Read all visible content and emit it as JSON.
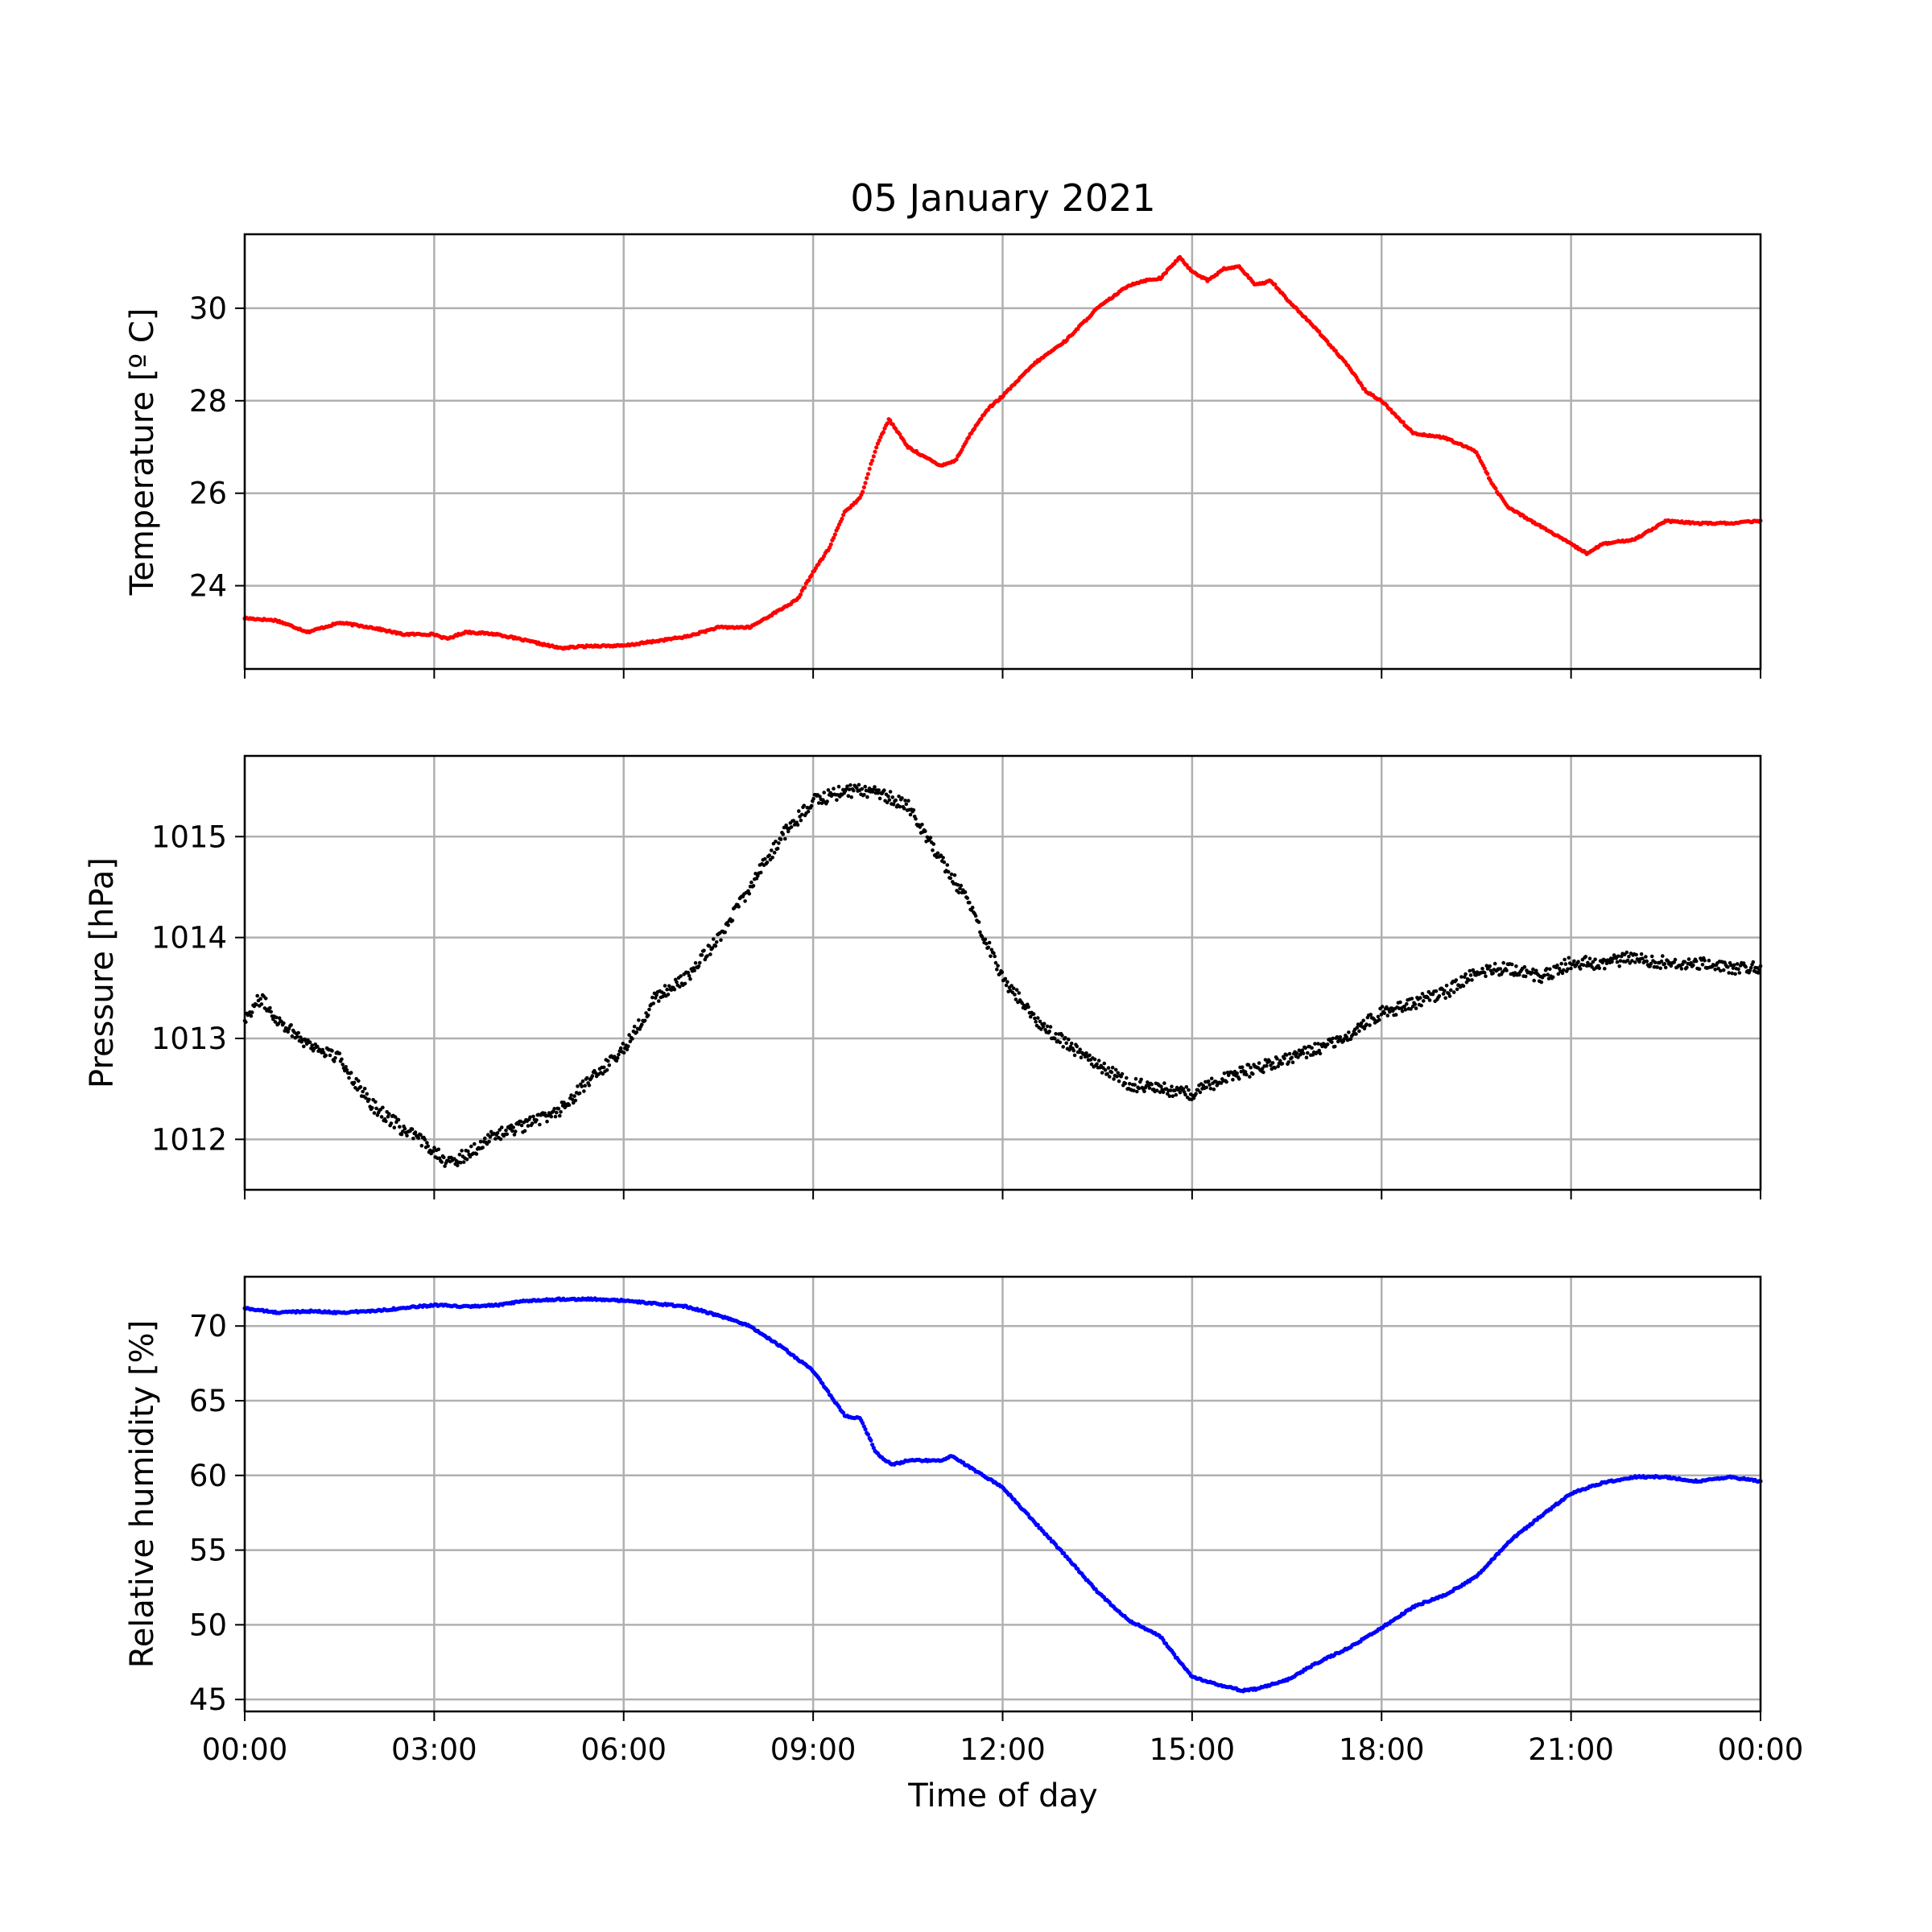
{
  "chart_data": {
    "type": "line",
    "title": "05 January 2021",
    "xlabel": "Time of day",
    "x_ticks": [
      "00:00",
      "03:00",
      "06:00",
      "09:00",
      "12:00",
      "15:00",
      "18:00",
      "21:00",
      "00:00"
    ],
    "x_range_hours": [
      0,
      24
    ],
    "grid": true,
    "panels": [
      {
        "id": "temperature",
        "ylabel": "Temperature [º C]",
        "series_color": "#ff0000",
        "marker": "dots",
        "ylim": [
          22.2,
          31.6
        ],
        "y_ticks": [
          24,
          26,
          28,
          30
        ],
        "x_hours": [
          0,
          0.5,
          1,
          1.5,
          2,
          2.5,
          3,
          3.2,
          3.5,
          4,
          4.5,
          5,
          5.5,
          6,
          6.5,
          7,
          7.5,
          8,
          8.5,
          8.75,
          9,
          9.25,
          9.5,
          9.75,
          10,
          10.2,
          10.5,
          10.75,
          11,
          11.25,
          11.5,
          11.75,
          12,
          12.5,
          13,
          13.5,
          14,
          14.25,
          14.5,
          14.8,
          15,
          15.25,
          15.5,
          15.75,
          16,
          16.25,
          16.5,
          17,
          17.5,
          17.75,
          18,
          18.5,
          19,
          19.5,
          19.75,
          20,
          20.5,
          21,
          21.25,
          21.5,
          22,
          22.5,
          23,
          23.5,
          24
        ],
        "y_values": [
          23.3,
          23.25,
          23.0,
          23.2,
          23.1,
          22.95,
          22.95,
          22.85,
          23.0,
          22.95,
          22.8,
          22.65,
          22.7,
          22.7,
          22.8,
          22.9,
          23.1,
          23.1,
          23.5,
          23.7,
          24.3,
          24.8,
          25.6,
          25.9,
          27.0,
          27.6,
          27.0,
          26.8,
          26.6,
          26.7,
          27.3,
          27.8,
          28.1,
          28.8,
          29.3,
          30.0,
          30.5,
          30.6,
          30.65,
          31.1,
          30.8,
          30.6,
          30.85,
          30.9,
          30.5,
          30.6,
          30.2,
          29.5,
          28.7,
          28.2,
          28.0,
          27.3,
          27.2,
          26.9,
          26.2,
          25.7,
          25.3,
          24.9,
          24.7,
          24.9,
          25.0,
          25.4,
          25.35,
          25.35,
          25.4
        ]
      },
      {
        "id": "pressure",
        "ylabel": "Pressure [hPa]",
        "series_color": "#000000",
        "marker": "scatter",
        "ylim": [
          1011.5,
          1015.8
        ],
        "y_ticks": [
          1012,
          1013,
          1014,
          1015
        ],
        "x_hours": [
          0,
          0.25,
          0.5,
          1,
          1.5,
          2,
          2.5,
          3,
          3.25,
          3.5,
          4,
          4.5,
          5,
          5.5,
          6,
          6.5,
          7,
          7.5,
          8,
          8.5,
          9,
          9.5,
          10,
          10.5,
          11,
          11.5,
          12,
          12.5,
          13,
          13.5,
          14,
          14.5,
          15,
          15.5,
          16,
          16.5,
          17,
          17.5,
          18,
          18.5,
          19,
          19.5,
          20,
          20.5,
          21,
          21.5,
          22,
          22.5,
          23,
          23.5,
          24
        ],
        "y_values": [
          1013.2,
          1013.4,
          1013.2,
          1012.95,
          1012.8,
          1012.35,
          1012.1,
          1011.9,
          1011.75,
          1011.85,
          1012.05,
          1012.15,
          1012.3,
          1012.6,
          1012.9,
          1013.4,
          1013.6,
          1014.0,
          1014.5,
          1015.0,
          1015.35,
          1015.45,
          1015.45,
          1015.3,
          1014.8,
          1014.3,
          1013.6,
          1013.2,
          1012.95,
          1012.75,
          1012.55,
          1012.5,
          1012.45,
          1012.6,
          1012.7,
          1012.8,
          1012.9,
          1013.05,
          1013.25,
          1013.35,
          1013.45,
          1013.65,
          1013.7,
          1013.6,
          1013.75,
          1013.75,
          1013.8,
          1013.75,
          1013.75,
          1013.7,
          1013.7
        ]
      },
      {
        "id": "humidity",
        "ylabel": "Relative humidity [%]",
        "series_color": "#0000ff",
        "marker": "dots",
        "ylim": [
          44.2,
          73.3
        ],
        "y_ticks": [
          45,
          50,
          55,
          60,
          65,
          70
        ],
        "x_hours": [
          0,
          0.5,
          1,
          1.5,
          2,
          2.5,
          3,
          3.5,
          4,
          4.5,
          5,
          5.5,
          6,
          6.5,
          7,
          7.5,
          8,
          8.5,
          9,
          9.5,
          9.75,
          10,
          10.25,
          10.5,
          11,
          11.2,
          11.5,
          12,
          12.5,
          13,
          13.5,
          14,
          14.5,
          14.75,
          15,
          15.5,
          15.8,
          16,
          16.5,
          17,
          17.5,
          18,
          18.5,
          19,
          19.5,
          20,
          20.5,
          21,
          21.5,
          22,
          22.5,
          23,
          23.5,
          24
        ],
        "y_values": [
          71.2,
          70.9,
          71.0,
          70.9,
          71.0,
          71.2,
          71.4,
          71.3,
          71.4,
          71.7,
          71.8,
          71.8,
          71.7,
          71.5,
          71.3,
          70.7,
          70.0,
          68.6,
          67.0,
          64.0,
          63.8,
          61.5,
          60.7,
          61.0,
          61.0,
          61.3,
          60.5,
          59.2,
          56.9,
          54.6,
          52.2,
          50.3,
          49.2,
          47.8,
          46.5,
          45.9,
          45.6,
          45.7,
          46.3,
          47.5,
          48.5,
          49.8,
          51.2,
          52.0,
          53.2,
          55.5,
          57.2,
          58.8,
          59.5,
          59.9,
          59.9,
          59.6,
          59.9,
          59.6
        ]
      }
    ]
  }
}
